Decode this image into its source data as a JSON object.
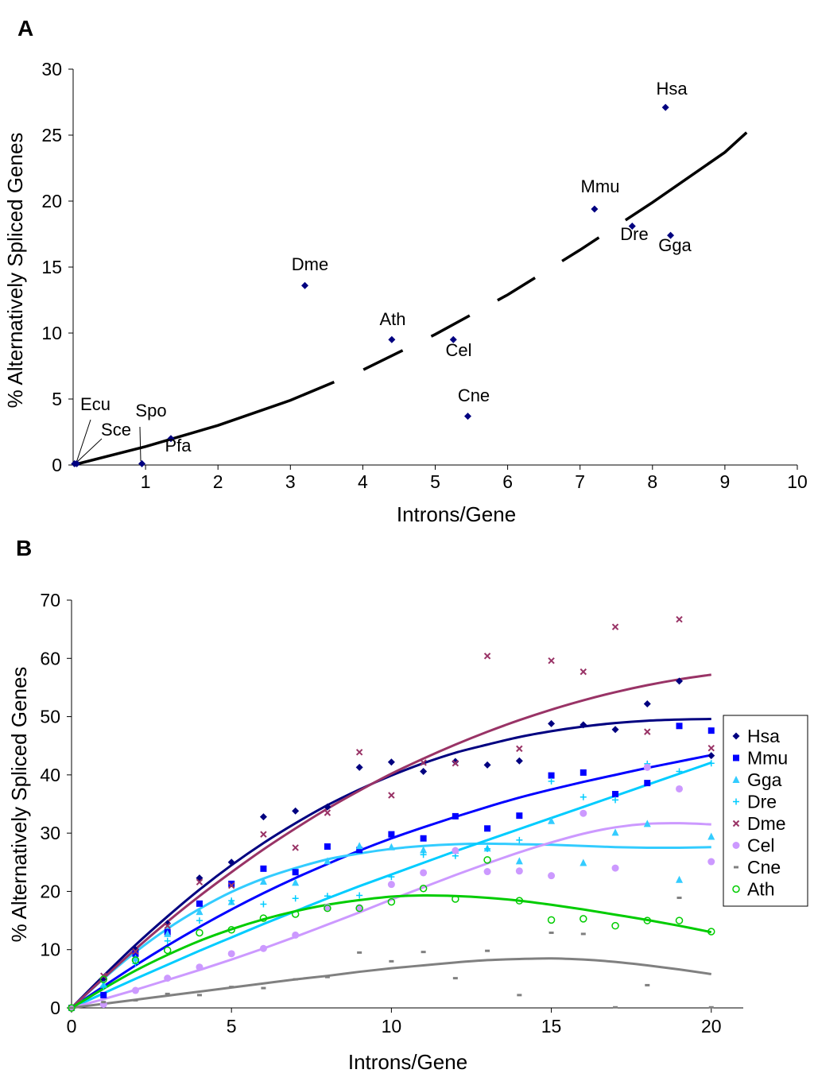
{
  "chart_data": [
    {
      "panel": "A",
      "type": "scatter",
      "xlabel": "Introns/Gene",
      "ylabel": "% Alternatively Spliced Genes",
      "xlim": [
        0,
        10
      ],
      "ylim": [
        0,
        30
      ],
      "x_ticks": [
        1,
        2,
        3,
        4,
        5,
        6,
        7,
        8,
        9,
        10
      ],
      "y_ticks": [
        0,
        5,
        10,
        15,
        20,
        25,
        30
      ],
      "grid": false,
      "marker_color": "#000080",
      "points": [
        {
          "label": "Ecu",
          "x": 0.02,
          "y": 0.1
        },
        {
          "label": "Sce",
          "x": 0.05,
          "y": 0.1
        },
        {
          "label": "Spo",
          "x": 0.95,
          "y": 0.1
        },
        {
          "label": "Pfa",
          "x": 1.35,
          "y": 2.0
        },
        {
          "label": "Dme",
          "x": 3.2,
          "y": 13.6
        },
        {
          "label": "Ath",
          "x": 4.4,
          "y": 9.5
        },
        {
          "label": "Cel",
          "x": 5.25,
          "y": 9.5
        },
        {
          "label": "Cne",
          "x": 5.45,
          "y": 3.7
        },
        {
          "label": "Mmu",
          "x": 7.2,
          "y": 19.4
        },
        {
          "label": "Dre",
          "x": 7.72,
          "y": 18.1
        },
        {
          "label": "Gga",
          "x": 8.25,
          "y": 17.4
        },
        {
          "label": "Hsa",
          "x": 8.18,
          "y": 27.1
        }
      ],
      "trend": {
        "x": [
          0,
          1,
          2,
          3,
          4,
          5,
          6,
          7,
          8,
          9,
          9.3
        ],
        "y": [
          0,
          1.4,
          3.0,
          4.9,
          7.2,
          9.9,
          12.9,
          16.3,
          19.9,
          23.7,
          25.2
        ]
      }
    },
    {
      "panel": "B",
      "type": "scatter",
      "xlabel": "Introns/Gene",
      "ylabel": "% Alternatively Spliced Genes",
      "xlim": [
        0,
        21
      ],
      "ylim": [
        0,
        70
      ],
      "x_ticks": [
        0,
        5,
        10,
        15,
        20
      ],
      "y_ticks": [
        0,
        10,
        20,
        30,
        40,
        50,
        60,
        70
      ],
      "grid": false,
      "legend_position": "right",
      "x": [
        0,
        1,
        2,
        3,
        4,
        5,
        6,
        7,
        8,
        9,
        10,
        11,
        12,
        13,
        14,
        15,
        16,
        17,
        18,
        19,
        20
      ],
      "series": [
        {
          "name": "Hsa",
          "marker": "diamond",
          "color": "#000080",
          "values": [
            0,
            5,
            10,
            14.5,
            22.3,
            25,
            32.8,
            33.8,
            34.5,
            41.3,
            42.2,
            40.6,
            42.3,
            41.7,
            42.4,
            48.8,
            48.6,
            47.8,
            52.2,
            56.1,
            43.3
          ],
          "fit": [
            0,
            5.5,
            10.8,
            15.7,
            20.3,
            24.5,
            28.3,
            31.7,
            34.8,
            37.5,
            39.9,
            42,
            43.8,
            45.2,
            46.5,
            47.5,
            48.3,
            48.9,
            49.3,
            49.5,
            49.6
          ]
        },
        {
          "name": "Mmu",
          "marker": "square",
          "color": "#0000ff",
          "values": [
            0,
            2.2,
            9.3,
            13,
            17.9,
            21.3,
            23.9,
            23.3,
            27.7,
            27.1,
            29.8,
            29.1,
            32.9,
            30.8,
            33,
            39.9,
            40.4,
            36.7,
            38.6,
            48.4,
            47.6
          ],
          "fit": [
            0,
            3.7,
            7.3,
            10.7,
            13.9,
            16.9,
            19.7,
            22.3,
            24.7,
            27,
            29.1,
            31,
            32.8,
            34.5,
            36.1,
            37.5,
            38.8,
            40,
            41.2,
            42.3,
            43.4
          ]
        },
        {
          "name": "Gga",
          "marker": "triangle",
          "color": "#33ccff",
          "values": [
            0,
            4,
            8.5,
            12.7,
            16.5,
            18.2,
            21.7,
            21.5,
            25.2,
            27.8,
            27.6,
            27.1,
            27,
            27.4,
            25.2,
            32.1,
            24.9,
            30.1,
            31.6,
            22,
            29.4
          ],
          "fit": [
            0,
            5,
            9.6,
            13.6,
            17,
            19.9,
            22.2,
            24,
            25.5,
            26.5,
            27.3,
            27.8,
            28.1,
            28.2,
            28.1,
            28,
            27.8,
            27.6,
            27.5,
            27.5,
            27.6
          ]
        },
        {
          "name": "Dre",
          "marker": "plus",
          "color": "#00ccff",
          "values": [
            0,
            3.7,
            7.6,
            11.5,
            15,
            18.4,
            17.8,
            18.8,
            19.2,
            19.3,
            22.5,
            26.3,
            26.1,
            27.3,
            28.8,
            38.9,
            36.2,
            35.7,
            41.9,
            40.6,
            42
          ],
          "fit": [
            0,
            2.5,
            5,
            7.4,
            9.8,
            12.1,
            14.4,
            16.6,
            18.8,
            20.9,
            22.9,
            24.9,
            26.9,
            28.8,
            30.7,
            32.6,
            34.5,
            36.4,
            38.3,
            40.2,
            42.1
          ]
        },
        {
          "name": "Dme",
          "marker": "x",
          "color": "#993366",
          "values": [
            0,
            5.5,
            9.7,
            14.1,
            21.6,
            21,
            29.8,
            27.5,
            33.5,
            43.9,
            36.5,
            42.1,
            42,
            60.4,
            44.5,
            59.6,
            57.7,
            65.4,
            47.4,
            66.7,
            44.6
          ],
          "fit": [
            0,
            5.1,
            10.1,
            14.8,
            19.2,
            23.3,
            27.2,
            30.8,
            34.2,
            37.3,
            40.2,
            42.8,
            45.2,
            47.4,
            49.4,
            51.2,
            52.8,
            54.2,
            55.4,
            56.4,
            57.2
          ]
        },
        {
          "name": "Cel",
          "marker": "circle",
          "color": "#cc99ff",
          "values": [
            0,
            0.6,
            3,
            5.1,
            7,
            9.3,
            10.2,
            12.5,
            17.3,
            17.2,
            21.2,
            23.2,
            27,
            23.4,
            23.5,
            22.7,
            33.4,
            24,
            41.3,
            37.6,
            25.1
          ],
          "fit": [
            0,
            1.5,
            3.1,
            4.8,
            6.5,
            8.3,
            10.2,
            12.2,
            14.3,
            16.4,
            18.6,
            20.7,
            22.8,
            24.8,
            26.7,
            28.4,
            29.9,
            31,
            31.6,
            31.7,
            31.5
          ]
        },
        {
          "name": "Cne",
          "marker": "dash",
          "color": "#808080",
          "values": [
            0,
            1,
            1.3,
            2.4,
            2.2,
            3.6,
            3.4,
            4.9,
            5.3,
            9.5,
            8,
            9.6,
            5.1,
            9.8,
            2.2,
            12.9,
            12.7,
            0.1,
            3.9,
            18.9,
            0.1
          ],
          "fit": [
            0,
            0.7,
            1.4,
            2.1,
            2.8,
            3.5,
            4.2,
            4.9,
            5.5,
            6.2,
            6.8,
            7.3,
            7.8,
            8.2,
            8.4,
            8.5,
            8.3,
            7.9,
            7.3,
            6.6,
            5.8
          ]
        },
        {
          "name": "Ath",
          "marker": "open-circle",
          "color": "#00cc00",
          "values": [
            0,
            4.9,
            8.2,
            9.9,
            12.9,
            13.4,
            15.4,
            16.1,
            17.1,
            17.1,
            18.2,
            20.5,
            18.7,
            25.4,
            18.4,
            15.1,
            15.3,
            14.1,
            15,
            15,
            13.1
          ],
          "fit": [
            0,
            3.3,
            6.4,
            9.1,
            11.5,
            13.5,
            15.2,
            16.6,
            17.7,
            18.5,
            19.1,
            19.3,
            19.2,
            18.9,
            18.4,
            17.7,
            16.9,
            16,
            15.1,
            14.1,
            13
          ]
        }
      ]
    }
  ]
}
